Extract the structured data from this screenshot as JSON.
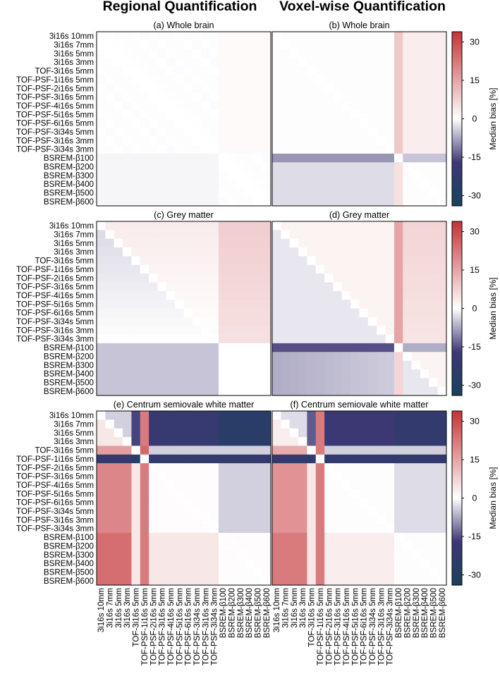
{
  "column_titles": [
    "Regional Quantification",
    "Voxel-wise Quantification"
  ],
  "colorbar": {
    "label": "Median bias [%]",
    "ticks": [
      30,
      15,
      0,
      -15,
      -30
    ],
    "range": [
      -34,
      34
    ],
    "colors": {
      "negative": "#17435c",
      "mid_negative": "#3e3775",
      "zero": "#ffffff",
      "positive": "#c43236"
    }
  },
  "chart_data": [
    {
      "type": "heatmap",
      "title": "(a) Whole brain",
      "region": "Whole brain",
      "method": "Regional Quantification",
      "pattern": "whole_regional",
      "clim": [
        -34,
        34
      ],
      "row_labels": [
        "3i16s 10mm",
        "3i16s 7mm",
        "3i16s 5mm",
        "3i16s 3mm",
        "TOF-3i16s 5mm",
        "TOF-PSF-1i16s 5mm",
        "TOF-PSF-2i16s 5mm",
        "TOF-PSF-3i16s 5mm",
        "TOF-PSF-4i16s 5mm",
        "TOF-PSF-5i16s 5mm",
        "TOF-PSF-6i16s 5mm",
        "TOF-PSF-3i34s 5mm",
        "TOF-PSF-3i16s 3mm",
        "TOF-PSF-3i34s 3mm",
        "BSREM-β100",
        "BSREM-β200",
        "BSREM-β300",
        "BSREM-β400",
        "BSREM-β500",
        "BSREM-β600"
      ],
      "col_labels": []
    },
    {
      "type": "heatmap",
      "title": "(b) Whole brain",
      "region": "Whole brain",
      "method": "Voxel-wise Quantification",
      "pattern": "whole_voxel",
      "clim": [
        -34,
        34
      ],
      "row_labels": [],
      "col_labels": []
    },
    {
      "type": "heatmap",
      "title": "(c) Grey matter",
      "region": "Grey matter",
      "method": "Regional Quantification",
      "pattern": "grey_regional",
      "clim": [
        -34,
        34
      ],
      "row_labels": [
        "3i16s 10mm",
        "3i16s 7mm",
        "3i16s 5mm",
        "3i16s 3mm",
        "TOF-3i16s 5mm",
        "TOF-PSF-1i16s 5mm",
        "TOF-PSF-2i16s 5mm",
        "TOF-PSF-3i16s 5mm",
        "TOF-PSF-4i16s 5mm",
        "TOF-PSF-5i16s 5mm",
        "TOF-PSF-6i16s 5mm",
        "TOF-PSF-3i34s 5mm",
        "TOF-PSF-3i16s 3mm",
        "TOF-PSF-3i34s 3mm",
        "BSREM-β100",
        "BSREM-β200",
        "BSREM-β300",
        "BSREM-β400",
        "BSREM-β500",
        "BSREM-β600"
      ],
      "col_labels": []
    },
    {
      "type": "heatmap",
      "title": "(d) Grey matter",
      "region": "Grey matter",
      "method": "Voxel-wise Quantification",
      "pattern": "grey_voxel",
      "clim": [
        -34,
        34
      ],
      "row_labels": [],
      "col_labels": []
    },
    {
      "type": "heatmap",
      "title": "(e) Centrum semiovale white matter",
      "region": "Centrum semiovale white matter",
      "method": "Regional Quantification",
      "pattern": "wm_regional",
      "clim": [
        -34,
        34
      ],
      "row_labels": [
        "3i16s 10mm",
        "3i16s 7mm",
        "3i16s 5mm",
        "3i16s 3mm",
        "TOF-3i16s 5mm",
        "TOF-PSF-1i16s 5mm",
        "TOF-PSF-2i16s 5mm",
        "TOF-PSF-3i16s 5mm",
        "TOF-PSF-4i16s 5mm",
        "TOF-PSF-5i16s 5mm",
        "TOF-PSF-6i16s 5mm",
        "TOF-PSF-3i34s 5mm",
        "TOF-PSF-3i16s 3mm",
        "TOF-PSF-3i34s 3mm",
        "BSREM-β100",
        "BSREM-β200",
        "BSREM-β300",
        "BSREM-β400",
        "BSREM-β500",
        "BSREM-β600"
      ],
      "col_labels": [
        "3i16s 10mm",
        "3i16s 7mm",
        "3i16s 5mm",
        "3i16s 3mm",
        "TOF-3i16s 5mm",
        "TOF-PSF-1i16s 5mm",
        "TOF-PSF-2i16s 5mm",
        "TOF-PSF-3i16s 5mm",
        "TOF-PSF-4i16s 5mm",
        "TOF-PSF-5i16s 5mm",
        "TOF-PSF-6i16s 5mm",
        "TOF-PSF-3i34s 5mm",
        "TOF-PSF-3i16s 3mm",
        "TOF-PSF-3i34s 3mm",
        "BSREM-β100",
        "BSREM-β200",
        "BSREM-β300",
        "BSREM-β400",
        "BSREM-β500",
        "BSREM-β600"
      ]
    },
    {
      "type": "heatmap",
      "title": "(f) Centrum semiovale white matter",
      "region": "Centrum semiovale white matter",
      "method": "Voxel-wise Quantification",
      "pattern": "wm_voxel",
      "clim": [
        -34,
        34
      ],
      "row_labels": [],
      "col_labels": [
        "3i16s 10mm",
        "3i16s 7mm",
        "3i16s 5mm",
        "3i16s 3mm",
        "TOF-3i16s 5mm",
        "TOF-PSF-1i16s 5mm",
        "TOF-PSF-2i16s 5mm",
        "TOF-PSF-3i16s 5mm",
        "TOF-PSF-4i16s 5mm",
        "TOF-PSF-5i16s 5mm",
        "TOF-PSF-6i16s 5mm",
        "TOF-PSF-3i34s 5mm",
        "TOF-PSF-3i16s 3mm",
        "TOF-PSF-3i34s 3mm",
        "BSREM-β100",
        "BSREM-β200",
        "BSREM-β300",
        "BSREM-β400",
        "BSREM-β500",
        "BSREM-β600"
      ]
    }
  ]
}
